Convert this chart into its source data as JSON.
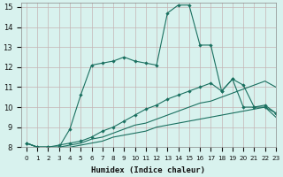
{
  "xlabel": "Humidex (Indice chaleur)",
  "bg_color": "#d8f2ee",
  "grid_color": "#c4b4b4",
  "line_color": "#1a7060",
  "xlim": [
    -0.5,
    23
  ],
  "ylim": [
    8,
    15.2
  ],
  "xticks": [
    0,
    1,
    2,
    3,
    4,
    5,
    6,
    7,
    8,
    9,
    10,
    11,
    12,
    13,
    14,
    15,
    16,
    17,
    18,
    19,
    20,
    21,
    22,
    23
  ],
  "yticks": [
    8,
    9,
    10,
    11,
    12,
    13,
    14,
    15
  ],
  "series": [
    {
      "markers": true,
      "x": [
        0,
        1,
        2,
        3,
        4,
        5,
        6,
        7,
        8,
        9,
        10,
        11,
        12,
        13,
        14,
        15,
        16,
        17,
        18,
        19,
        20,
        21,
        22,
        23
      ],
      "y": [
        8.2,
        8.0,
        8.0,
        8.0,
        8.9,
        10.6,
        12.1,
        12.2,
        12.3,
        12.5,
        12.3,
        12.2,
        12.1,
        14.7,
        15.1,
        15.1,
        13.1,
        13.1,
        10.8,
        11.4,
        11.1,
        10.0,
        10.1,
        9.7
      ]
    },
    {
      "markers": true,
      "x": [
        0,
        1,
        2,
        3,
        4,
        5,
        6,
        7,
        8,
        9,
        10,
        11,
        12,
        13,
        14,
        15,
        16,
        17,
        18,
        19,
        20,
        21,
        22,
        23
      ],
      "y": [
        8.2,
        8.0,
        8.0,
        8.1,
        8.2,
        8.3,
        8.5,
        8.8,
        9.0,
        9.3,
        9.6,
        9.9,
        10.1,
        10.4,
        10.6,
        10.8,
        11.0,
        11.2,
        10.8,
        11.4,
        10.0,
        10.0,
        10.0,
        9.7
      ]
    },
    {
      "markers": false,
      "x": [
        0,
        1,
        2,
        3,
        4,
        5,
        6,
        7,
        8,
        9,
        10,
        11,
        12,
        13,
        14,
        15,
        16,
        17,
        18,
        19,
        20,
        21,
        22,
        23
      ],
      "y": [
        8.2,
        8.0,
        8.0,
        8.0,
        8.1,
        8.2,
        8.4,
        8.5,
        8.7,
        8.9,
        9.1,
        9.2,
        9.4,
        9.6,
        9.8,
        10.0,
        10.2,
        10.3,
        10.5,
        10.7,
        10.9,
        11.1,
        11.3,
        11.0
      ]
    },
    {
      "markers": false,
      "x": [
        0,
        1,
        2,
        3,
        4,
        5,
        6,
        7,
        8,
        9,
        10,
        11,
        12,
        13,
        14,
        15,
        16,
        17,
        18,
        19,
        20,
        21,
        22,
        23
      ],
      "y": [
        8.2,
        8.0,
        8.0,
        8.0,
        8.0,
        8.1,
        8.2,
        8.3,
        8.5,
        8.6,
        8.7,
        8.8,
        9.0,
        9.1,
        9.2,
        9.3,
        9.4,
        9.5,
        9.6,
        9.7,
        9.8,
        9.9,
        10.0,
        9.5
      ]
    }
  ]
}
